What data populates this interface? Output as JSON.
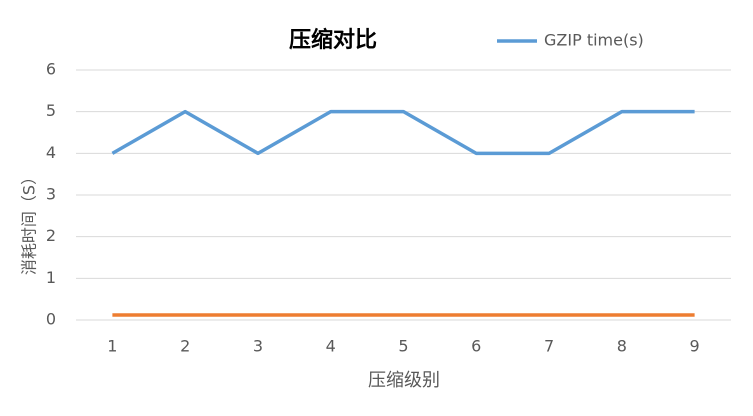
{
  "chart_data": {
    "type": "line",
    "title": "压缩对比",
    "x_label": "压缩级别",
    "y_label": "消耗时间（S）",
    "categories": [
      "1",
      "2",
      "3",
      "4",
      "5",
      "6",
      "7",
      "8",
      "9"
    ],
    "series": [
      {
        "name": "GZIP time(s)",
        "color": "#5b9bd5",
        "values": [
          4,
          5,
          4,
          5,
          5,
          4,
          4,
          5,
          5
        ]
      },
      {
        "color": "#ed7d31",
        "values": [
          0.12,
          0.12,
          0.12,
          0.12,
          0.12,
          0.12,
          0.12,
          0.12,
          0.12
        ]
      }
    ],
    "ylim": [
      0,
      6
    ],
    "yticks": [
      0,
      1,
      2,
      3,
      4,
      5,
      6
    ],
    "grid": true,
    "legend": "top-right"
  }
}
